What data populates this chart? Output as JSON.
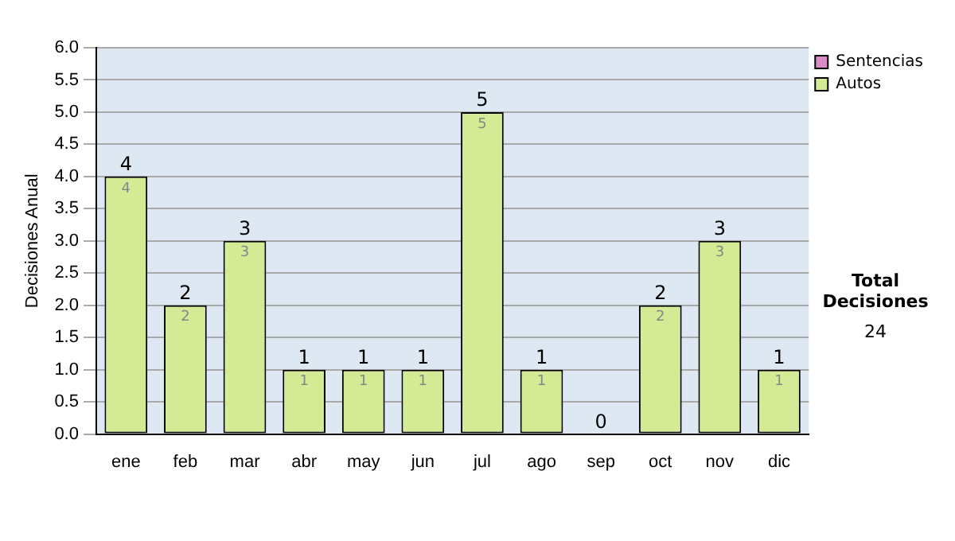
{
  "chart_data": {
    "type": "bar",
    "stacked": true,
    "ylabel": "Decisiones Anual",
    "categories": [
      "ene",
      "feb",
      "mar",
      "abr",
      "may",
      "jun",
      "jul",
      "ago",
      "sep",
      "oct",
      "nov",
      "dic"
    ],
    "series": [
      {
        "name": "Sentencias",
        "color": "#d98cc4",
        "values": [
          0,
          0,
          0,
          0,
          0,
          0,
          0,
          0,
          0,
          0,
          0,
          0
        ]
      },
      {
        "name": "Autos",
        "color": "#d4ea94",
        "values": [
          4,
          2,
          3,
          1,
          1,
          1,
          5,
          1,
          0,
          2,
          3,
          1
        ],
        "value_labels": [
          "4",
          "2",
          "3",
          "1",
          "1",
          "1",
          "5",
          "1",
          null,
          "2",
          "3",
          "1"
        ]
      }
    ],
    "totals": [
      "4",
      "2",
      "3",
      "1",
      "1",
      "1",
      "5",
      "1",
      "0",
      "2",
      "3",
      "1"
    ],
    "ylim": [
      0,
      6
    ],
    "yticks": [
      {
        "value": 0,
        "label": "0.0"
      },
      {
        "value": 0.5,
        "label": "0.5"
      },
      {
        "value": 1,
        "label": "1.0"
      },
      {
        "value": 1.5,
        "label": "1.5"
      },
      {
        "value": 2,
        "label": "2.0"
      },
      {
        "value": 2.5,
        "label": "2.5"
      },
      {
        "value": 3,
        "label": "3.0"
      },
      {
        "value": 3.5,
        "label": "3.5"
      },
      {
        "value": 4,
        "label": "4.0"
      },
      {
        "value": 4.5,
        "label": "4.5"
      },
      {
        "value": 5,
        "label": "5.0"
      },
      {
        "value": 5.5,
        "label": "5.5"
      },
      {
        "value": 6,
        "label": "6.0"
      }
    ],
    "grid": "y",
    "legend": "right",
    "annotations": [
      "Total Decisiones",
      "24"
    ]
  }
}
